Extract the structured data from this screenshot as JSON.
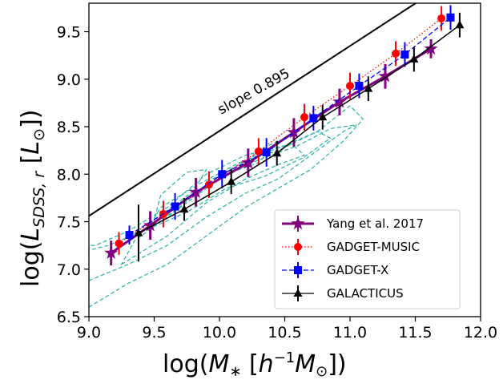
{
  "chart_data": {
    "type": "line",
    "xlabel": "log(M_* [h^-1 M_sun])",
    "ylabel": "log(L_SDSS,r [L_sun])",
    "xlim": [
      9.0,
      12.0
    ],
    "ylim": [
      6.5,
      9.8
    ],
    "xticks": [
      "9.0",
      "9.5",
      "10.0",
      "10.5",
      "11.0",
      "11.5",
      "12.0"
    ],
    "yticks": [
      "6.5",
      "7.0",
      "7.5",
      "8.0",
      "8.5",
      "9.0",
      "9.5"
    ],
    "annotation": {
      "text": "slope 0.895",
      "slope": 0.895
    },
    "reference_line": {
      "x": [
        9.0,
        10.0,
        11.0,
        11.6
      ],
      "y": [
        7.56,
        8.455,
        9.35,
        9.887
      ]
    },
    "legend_position": "lower right",
    "series": [
      {
        "name": "Yang et al. 2017",
        "color": "#800080",
        "marker": "star",
        "linestyle": "solid",
        "x": [
          9.17,
          9.47,
          9.82,
          10.22,
          10.57,
          10.92,
          11.27,
          11.62
        ],
        "y": [
          7.17,
          7.46,
          7.81,
          8.12,
          8.44,
          8.76,
          9.03,
          9.32
        ],
        "err": [
          0.13,
          0.15,
          0.15,
          0.15,
          0.15,
          0.14,
          0.13,
          0.1
        ]
      },
      {
        "name": "GADGET-MUSIC",
        "color": "#ff0000",
        "marker": "circle",
        "linestyle": "dotted",
        "x": [
          9.23,
          9.57,
          9.92,
          10.3,
          10.65,
          11.0,
          11.35,
          11.7
        ],
        "y": [
          7.27,
          7.58,
          7.89,
          8.24,
          8.6,
          8.93,
          9.27,
          9.64
        ],
        "err": [
          0.12,
          0.14,
          0.14,
          0.14,
          0.14,
          0.14,
          0.13,
          0.13
        ]
      },
      {
        "name": "GADGET-X",
        "color": "#0000ff",
        "marker": "square",
        "linestyle": "dashed",
        "x": [
          9.31,
          9.66,
          10.02,
          10.36,
          10.72,
          11.07,
          11.42,
          11.77
        ],
        "y": [
          7.36,
          7.66,
          8.0,
          8.23,
          8.59,
          8.93,
          9.26,
          9.65
        ],
        "err": [
          0.1,
          0.14,
          0.15,
          0.15,
          0.13,
          0.13,
          0.13,
          0.13
        ]
      },
      {
        "name": "GALACTICUS",
        "color": "#000000",
        "marker": "triangle",
        "linestyle": "solid",
        "x": [
          9.38,
          9.73,
          10.09,
          10.44,
          10.79,
          11.14,
          11.49,
          11.84
        ],
        "y": [
          7.38,
          7.63,
          7.92,
          8.22,
          8.6,
          8.9,
          9.21,
          9.57
        ],
        "err": [
          0.3,
          0.12,
          0.13,
          0.13,
          0.13,
          0.13,
          0.13,
          0.13
        ]
      }
    ],
    "contour_color": "#20b2aa",
    "contours": [
      [
        [
          9.0,
          6.6
        ],
        [
          9.3,
          6.85
        ],
        [
          9.6,
          7.05
        ],
        [
          9.9,
          7.35
        ],
        [
          10.2,
          7.65
        ],
        [
          10.45,
          7.85
        ],
        [
          10.7,
          8.05
        ],
        [
          10.95,
          8.35
        ],
        [
          11.1,
          8.58
        ],
        [
          11.0,
          8.72
        ],
        [
          10.75,
          8.45
        ],
        [
          10.5,
          8.3
        ],
        [
          10.2,
          8.2
        ],
        [
          9.9,
          8.0
        ],
        [
          9.6,
          7.65
        ],
        [
          9.3,
          7.4
        ],
        [
          9.05,
          7.25
        ],
        [
          9.0,
          7.25
        ]
      ],
      [
        [
          9.0,
          6.88
        ],
        [
          9.3,
          7.05
        ],
        [
          9.6,
          7.25
        ],
        [
          9.9,
          7.55
        ],
        [
          10.2,
          7.8
        ],
        [
          10.45,
          7.95
        ],
        [
          10.7,
          8.2
        ],
        [
          10.95,
          8.45
        ],
        [
          11.05,
          8.52
        ],
        [
          10.85,
          8.48
        ],
        [
          10.6,
          8.3
        ],
        [
          10.3,
          8.15
        ],
        [
          10.0,
          7.95
        ],
        [
          9.7,
          7.65
        ],
        [
          9.4,
          7.4
        ],
        [
          9.15,
          7.25
        ],
        [
          9.0,
          7.2
        ]
      ],
      [
        [
          9.45,
          7.42
        ],
        [
          9.75,
          7.6
        ],
        [
          10.05,
          7.85
        ],
        [
          10.35,
          7.98
        ],
        [
          10.65,
          8.18
        ],
        [
          10.85,
          8.38
        ],
        [
          10.75,
          8.45
        ],
        [
          10.45,
          8.25
        ],
        [
          10.15,
          8.12
        ],
        [
          9.85,
          7.9
        ],
        [
          9.55,
          7.65
        ]
      ],
      [
        [
          9.25,
          7.05
        ],
        [
          9.6,
          7.35
        ],
        [
          9.9,
          7.7
        ],
        [
          10.2,
          7.95
        ],
        [
          10.45,
          8.1
        ],
        [
          10.65,
          8.2
        ],
        [
          10.55,
          8.32
        ],
        [
          10.25,
          8.18
        ],
        [
          9.95,
          7.95
        ],
        [
          9.65,
          7.6
        ],
        [
          9.35,
          7.3
        ]
      ],
      [
        [
          10.15,
          8.05
        ],
        [
          10.3,
          8.25
        ],
        [
          10.45,
          8.35
        ],
        [
          10.3,
          8.12
        ]
      ],
      [
        [
          9.5,
          7.52
        ],
        [
          9.8,
          7.82
        ],
        [
          9.9,
          8.05
        ],
        [
          9.75,
          8.02
        ],
        [
          9.55,
          7.78
        ]
      ]
    ]
  }
}
